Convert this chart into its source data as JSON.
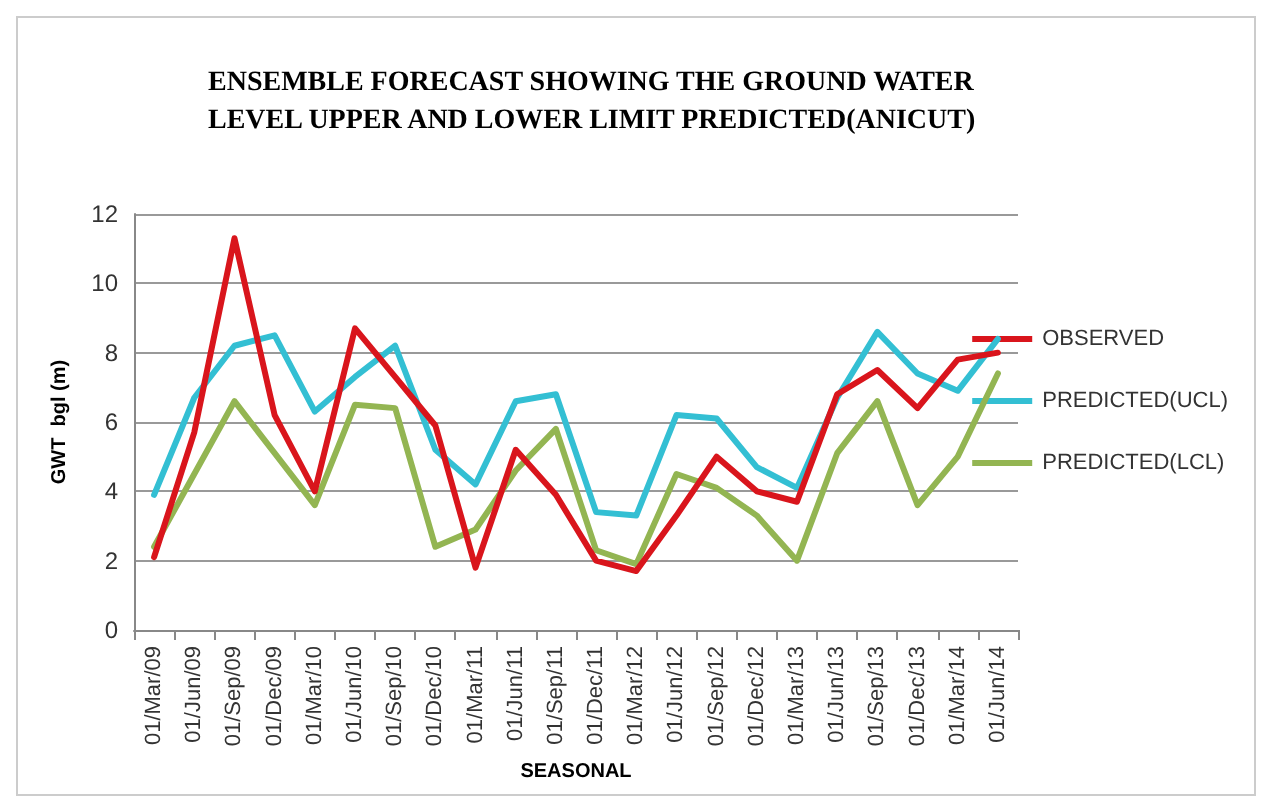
{
  "chart_data": {
    "type": "line",
    "title": "ENSEMBLE FORECAST SHOWING THE GROUND WATER\nLEVEL UPPER AND LOWER LIMIT PREDICTED(ANICUT)",
    "xlabel": "SEASONAL",
    "ylabel": "GWT  bgl (m)",
    "categories": [
      "01/Mar/09",
      "01/Jun/09",
      "01/Sep/09",
      "01/Dec/09",
      "01/Mar/10",
      "01/Jun/10",
      "01/Sep/10",
      "01/Dec/10",
      "01/Mar/11",
      "01/Jun/11",
      "01/Sep/11",
      "01/Dec/11",
      "01/Mar/12",
      "01/Jun/12",
      "01/Sep/12",
      "01/Dec/12",
      "01/Mar/13",
      "01/Jun/13",
      "01/Sep/13",
      "01/Dec/13",
      "01/Mar/14",
      "01/Jun/14"
    ],
    "series": [
      {
        "name": "OBSERVED",
        "color": "#d9151c",
        "values": [
          2.1,
          5.7,
          11.3,
          6.2,
          4.0,
          8.7,
          7.3,
          5.9,
          1.8,
          5.2,
          3.9,
          2.0,
          1.7,
          3.3,
          5.0,
          4.0,
          3.7,
          6.8,
          7.5,
          6.4,
          7.8,
          8.0
        ]
      },
      {
        "name": "PREDICTED(UCL)",
        "color": "#33bfd3",
        "values": [
          3.9,
          6.7,
          8.2,
          8.5,
          6.3,
          7.3,
          8.2,
          5.2,
          4.2,
          6.6,
          6.8,
          3.4,
          3.3,
          6.2,
          6.1,
          4.7,
          4.1,
          6.7,
          8.6,
          7.4,
          6.9,
          8.4
        ]
      },
      {
        "name": "PREDICTED(LCL)",
        "color": "#93b552",
        "values": [
          2.4,
          4.5,
          6.6,
          5.1,
          3.6,
          6.5,
          6.4,
          2.4,
          2.9,
          4.6,
          5.8,
          2.3,
          1.9,
          4.5,
          4.1,
          3.3,
          2.0,
          5.1,
          6.6,
          3.6,
          5.0,
          7.4
        ]
      }
    ],
    "ylim": [
      0,
      12
    ],
    "yticks": [
      0,
      2,
      4,
      6,
      8,
      10,
      12
    ],
    "grid": "y",
    "legend": "right",
    "marker": "none",
    "line_style": "solid"
  }
}
